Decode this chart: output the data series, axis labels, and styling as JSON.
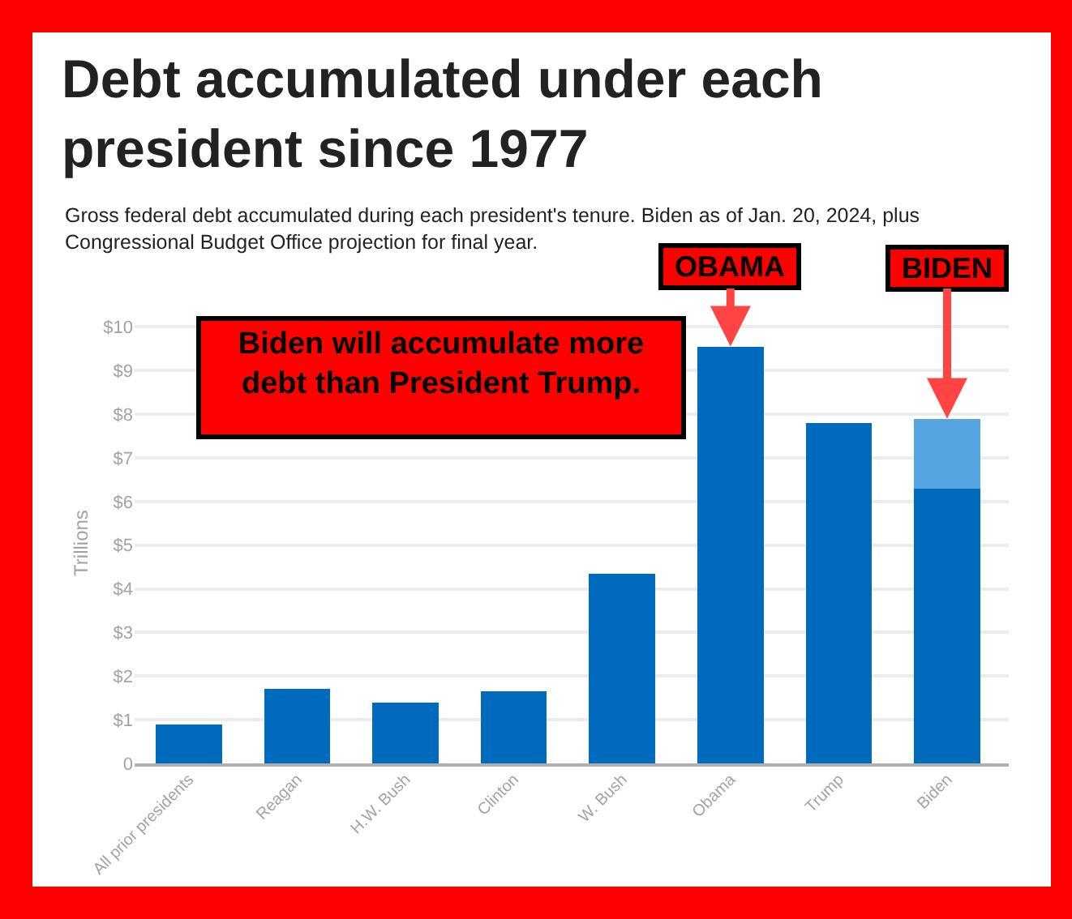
{
  "chart_data": {
    "type": "bar",
    "title": "Debt accumulated under each president since 1977",
    "subtitle": "Gross federal debt accumulated during each president's tenure. Biden as of Jan. 20, 2024, plus Congressional Budget Office projection for final year.",
    "ylabel": "Trillions",
    "categories": [
      "All prior presidents",
      "Reagan",
      "H.W. Bush",
      "Clinton",
      "W. Bush",
      "Obama",
      "Trump",
      "Biden"
    ],
    "stacked": true,
    "series": [
      {
        "color": "#006bbd",
        "values": [
          0.9,
          1.7,
          1.4,
          1.65,
          4.35,
          9.55,
          7.8,
          6.3
        ]
      },
      {
        "color": "#57a5e0",
        "values": [
          null,
          null,
          null,
          null,
          null,
          null,
          null,
          1.6
        ]
      }
    ],
    "ylim": [
      0,
      10.1
    ],
    "yticks": [
      0,
      {
        "value": 1,
        "label": "$1"
      },
      {
        "value": 2,
        "label": "$2"
      },
      {
        "value": 3,
        "label": "$3"
      },
      {
        "value": 4,
        "label": "$4"
      },
      {
        "value": 5,
        "label": "$5"
      },
      {
        "value": 6,
        "label": "$6"
      },
      {
        "value": 7,
        "label": "$7"
      },
      {
        "value": 8,
        "label": "$8"
      },
      {
        "value": 9,
        "label": "$9"
      },
      {
        "value": 10,
        "label": "$10"
      }
    ],
    "grid": "y",
    "annotations": [
      "Biden will accumulate more debt than President Trump.",
      {
        "text": "OBAMA",
        "x": "Obama",
        "y": 9.55
      },
      {
        "text": "BIDEN",
        "x": "Biden",
        "y": 7.9
      }
    ]
  }
}
